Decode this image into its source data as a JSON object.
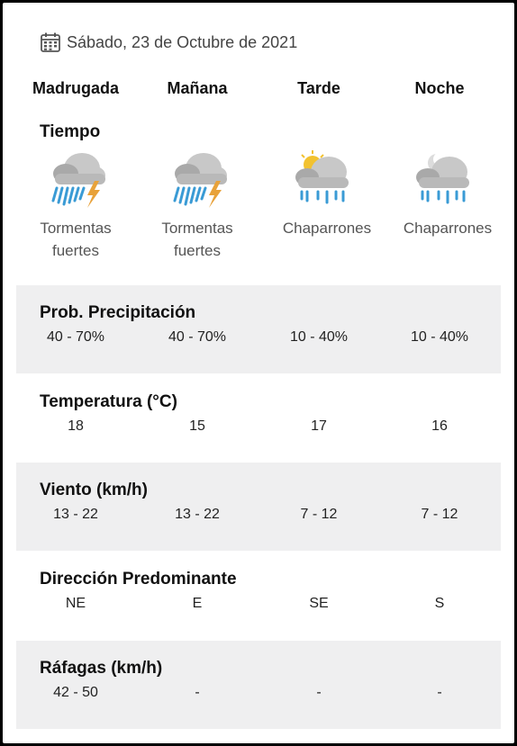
{
  "date": "Sábado, 23 de Octubre de 2021",
  "periods": [
    "Madrugada",
    "Mañana",
    "Tarde",
    "Noche"
  ],
  "weather_title": "Tiempo",
  "weather": [
    {
      "icon": "thunderstorm-icon",
      "line1": "Tormentas",
      "line2": "fuertes"
    },
    {
      "icon": "thunderstorm-icon",
      "line1": "Tormentas",
      "line2": "fuertes"
    },
    {
      "icon": "sun-cloud-rain-icon",
      "line1": "Chaparrones",
      "line2": ""
    },
    {
      "icon": "moon-cloud-rain-icon",
      "line1": "Chaparrones",
      "line2": ""
    }
  ],
  "rows": [
    {
      "title": "Prob. Precipitación",
      "values": [
        "40 - 70%",
        "40 - 70%",
        "10 - 40%",
        "10 - 40%"
      ]
    },
    {
      "title": "Temperatura (°C)",
      "values": [
        "18",
        "15",
        "17",
        "16"
      ]
    },
    {
      "title": "Viento (km/h)",
      "values": [
        "13 - 22",
        "13 - 22",
        "7 - 12",
        "7 - 12"
      ]
    },
    {
      "title": "Dirección Predominante",
      "values": [
        "NE",
        "E",
        "SE",
        "S"
      ]
    },
    {
      "title": "Ráfagas (km/h)",
      "values": [
        "42 - 50",
        "-",
        "-",
        "-"
      ]
    }
  ],
  "colors": {
    "band": "#efeff0",
    "rain": "#3a9bd5",
    "lightning": "#e8a23a",
    "cloud": "#b8b8b8",
    "sun": "#f2c230"
  }
}
